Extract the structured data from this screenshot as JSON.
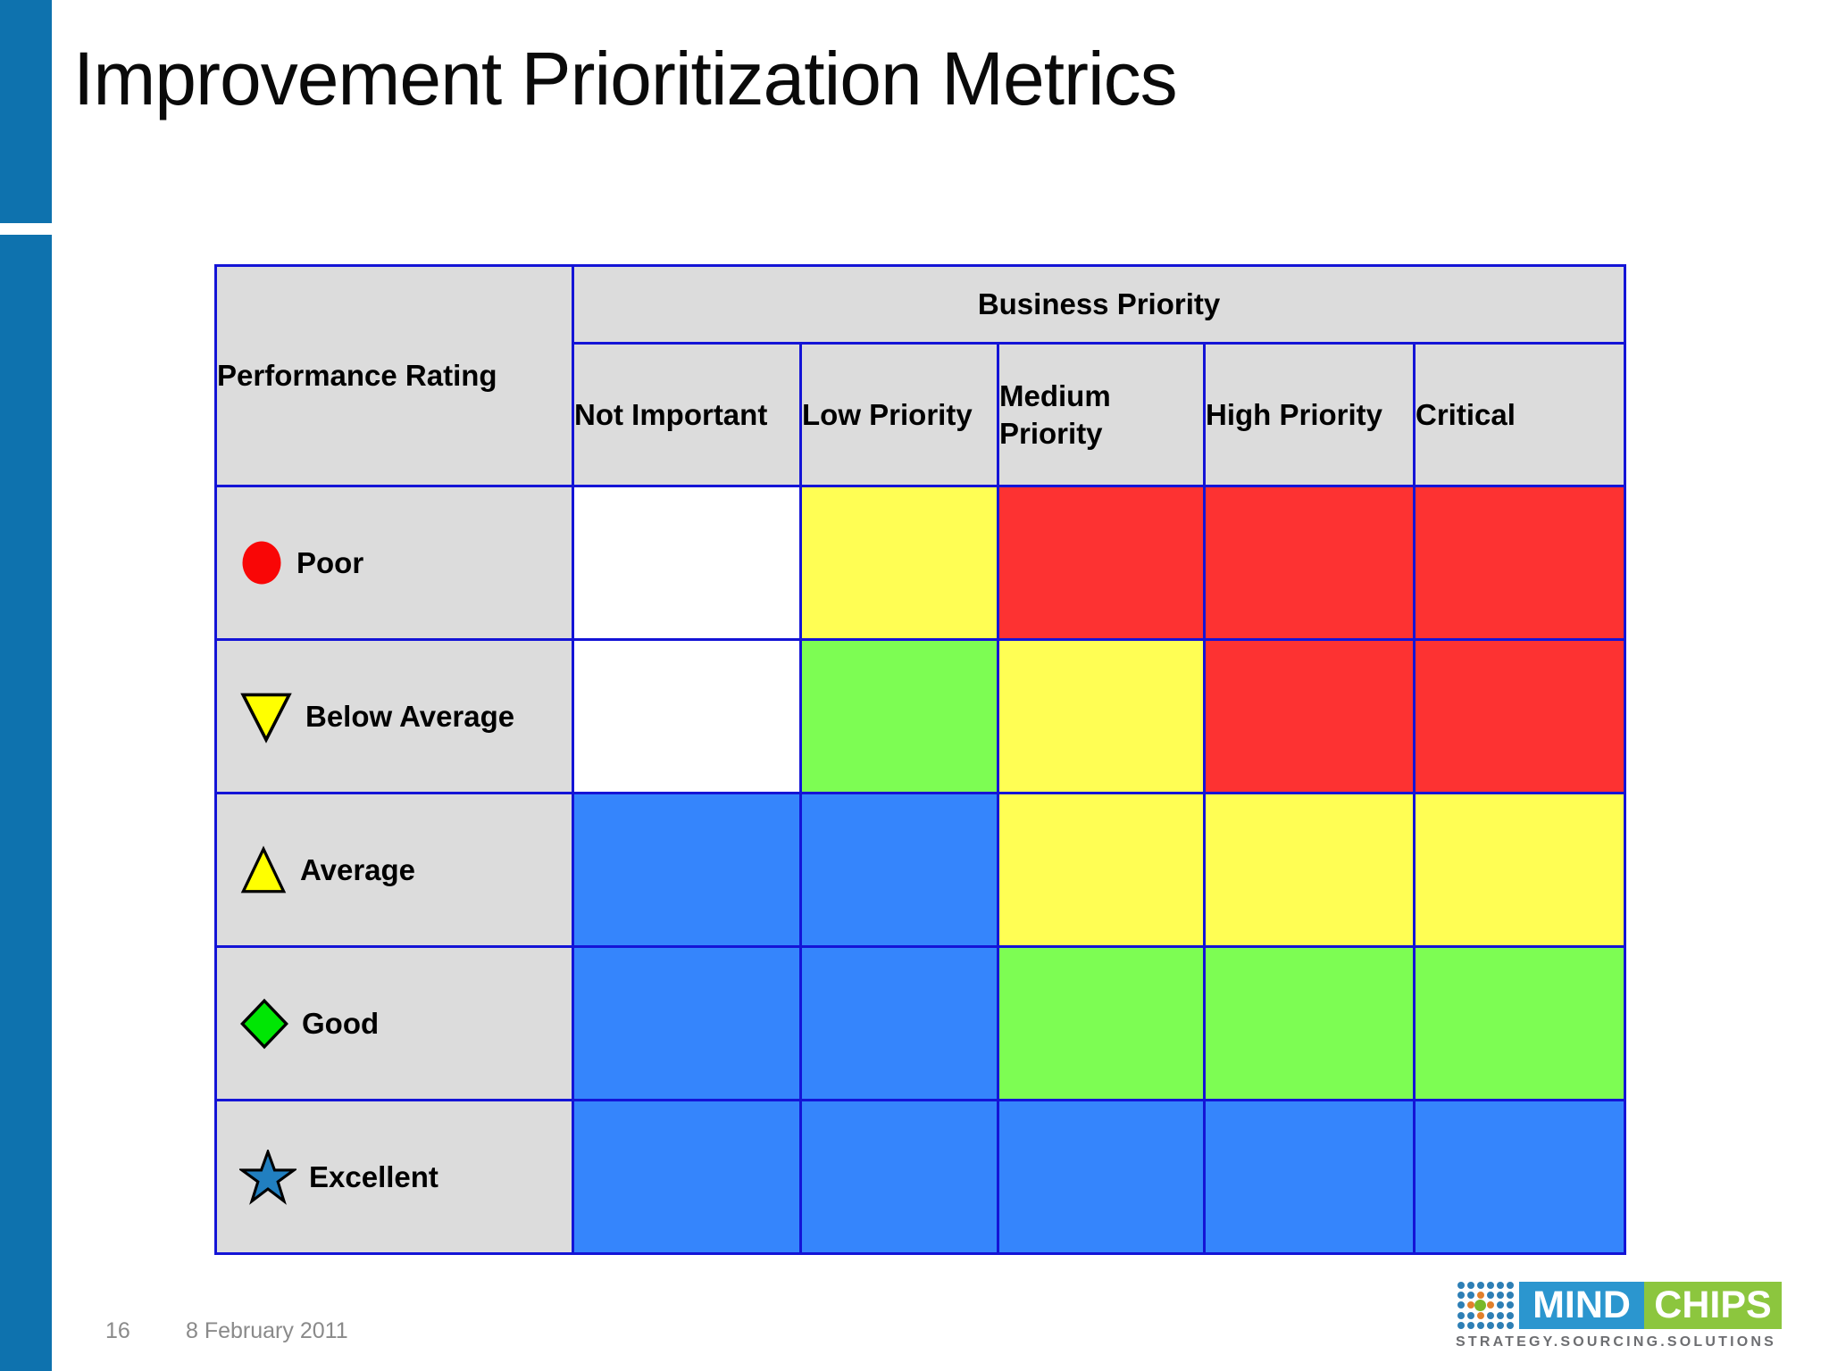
{
  "slide": {
    "title": "Improvement Prioritization Metrics",
    "page_number": "16",
    "date": "8 February 2011",
    "accent_bar_color": "#0e72ae"
  },
  "table": {
    "corner_header": "Performance Rating",
    "group_header": "Business Priority",
    "columns": [
      "Not Important",
      "Low Priority",
      "Medium Priority",
      "High Priority",
      "Critical"
    ],
    "rows": [
      {
        "label": "Poor",
        "icon": "red-circle-icon",
        "cells": [
          "white",
          "yellow",
          "red",
          "red",
          "red"
        ]
      },
      {
        "label": "Below Average",
        "icon": "yellow-triangle-down-icon",
        "cells": [
          "white",
          "green",
          "yellow",
          "red",
          "red"
        ]
      },
      {
        "label": "Average",
        "icon": "yellow-triangle-up-icon",
        "cells": [
          "blue",
          "blue",
          "yellow",
          "yellow",
          "yellow"
        ]
      },
      {
        "label": "Good",
        "icon": "green-diamond-icon",
        "cells": [
          "blue",
          "blue",
          "green",
          "green",
          "green"
        ]
      },
      {
        "label": "Excellent",
        "icon": "blue-star-icon",
        "cells": [
          "blue",
          "blue",
          "blue",
          "blue",
          "blue"
        ]
      }
    ],
    "cell_colors": {
      "white": "#ffffff",
      "yellow": "#fffe54",
      "red": "#fd3232",
      "green": "#7dfd53",
      "blue": "#3585fc"
    },
    "icon_colors": {
      "red-circle-icon": "#f90606",
      "yellow-triangle-down-icon": "#ffff00",
      "yellow-triangle-up-icon": "#ffff00",
      "green-diamond-icon": "#00e604",
      "blue-star-icon": "#217fc0"
    },
    "border_color": "#1414d6",
    "header_bg": "#dcdcdc"
  },
  "logo": {
    "mind_label": "MIND",
    "chips_label": "CHIPS",
    "tagline": "STRATEGY.SOURCING.SOLUTIONS",
    "mind_bg": "#2b96cf",
    "chips_bg": "#8cc63e",
    "tagline_color": "#6d6e71",
    "dot_pattern": [
      "bbbbbb",
      "bbobbb",
      "bogobb",
      "bbobbb",
      "bbbbbb"
    ],
    "dot_colors": {
      "b": "#2e7fb5",
      "o": "#e2802b",
      "g": "#79b829"
    }
  }
}
